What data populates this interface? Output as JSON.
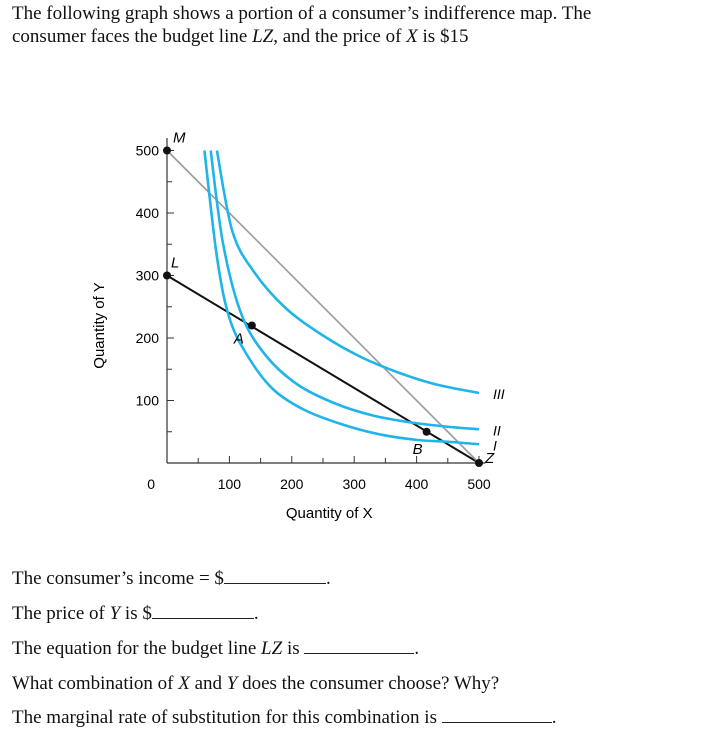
{
  "intro": {
    "line1": "The following graph shows a portion of a consumer’s indifference map. The",
    "line2_a": "consumer faces the budget line ",
    "line2_lz": "LZ",
    "line2_b": ", and the price of ",
    "line2_x": "X",
    "line2_c": " is $15"
  },
  "colors": {
    "curve": "#1fb4ea",
    "budget_LZ": "#111111",
    "line_MZ": "#9a9a9a",
    "axis": "#333333"
  },
  "chart_data": {
    "type": "line",
    "xlabel": "Quantity of X",
    "ylabel": "Quantity of Y",
    "xlim": [
      0,
      510
    ],
    "ylim": [
      0,
      520
    ],
    "xticks": [
      100,
      200,
      300,
      400,
      500
    ],
    "yticks": [
      100,
      200,
      300,
      400,
      500
    ],
    "origin_label": "0",
    "budget_lines": [
      {
        "name": "LZ",
        "points": [
          [
            0,
            300
          ],
          [
            500,
            0
          ]
        ]
      },
      {
        "name": "MZ",
        "points": [
          [
            0,
            500
          ],
          [
            500,
            0
          ]
        ]
      }
    ],
    "indifference_curves": [
      {
        "label": "I",
        "points": [
          [
            60,
            500
          ],
          [
            80,
            330
          ],
          [
            100,
            232
          ],
          [
            130,
            170
          ],
          [
            170,
            118
          ],
          [
            220,
            85
          ],
          [
            280,
            62
          ],
          [
            340,
            46
          ],
          [
            400,
            37
          ],
          [
            450,
            34
          ],
          [
            500,
            30
          ]
        ]
      },
      {
        "label": "II",
        "points": [
          [
            70,
            500
          ],
          [
            90,
            350
          ],
          [
            120,
            236
          ],
          [
            160,
            170
          ],
          [
            210,
            125
          ],
          [
            270,
            95
          ],
          [
            330,
            76
          ],
          [
            390,
            65
          ],
          [
            450,
            58
          ],
          [
            500,
            54
          ]
        ]
      },
      {
        "label": "III",
        "points": [
          [
            80,
            500
          ],
          [
            105,
            370
          ],
          [
            140,
            305
          ],
          [
            190,
            248
          ],
          [
            250,
            204
          ],
          [
            310,
            170
          ],
          [
            370,
            145
          ],
          [
            430,
            126
          ],
          [
            500,
            112
          ]
        ]
      }
    ],
    "points": [
      {
        "label": "M",
        "x": 0,
        "y": 500
      },
      {
        "label": "L",
        "x": 0,
        "y": 300
      },
      {
        "label": "A",
        "x": 136,
        "y": 220
      },
      {
        "label": "B",
        "x": 416,
        "y": 50
      },
      {
        "label": "Z",
        "x": 500,
        "y": 0
      }
    ]
  },
  "questions": {
    "income": "The consumer’s income = $",
    "price_y_a": "The price of ",
    "price_y_y": "Y",
    "price_y_b": " is $",
    "equation_a": "The equation for the budget line ",
    "equation_lz": "LZ",
    "equation_b": " is ",
    "combination_a": "What combination of ",
    "combination_x": "X",
    "combination_b": " and ",
    "combination_y": "Y",
    "combination_c": " does the consumer choose? Why?",
    "mrs": "The marginal rate of substitution for this combination is ",
    "period": "."
  }
}
